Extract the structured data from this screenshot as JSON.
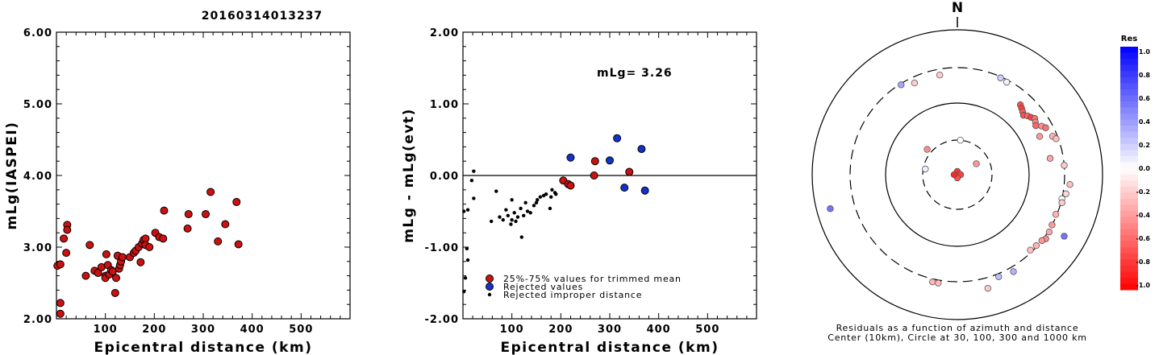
{
  "title": "20160314013237",
  "colors": {
    "red": "#cc1111",
    "blue": "#1133cc",
    "black": "#000000"
  },
  "chart_data": [
    {
      "type": "scatter",
      "ylabel": "mLg(IASPEI)",
      "xlabel": "Epicentral distance (km)",
      "xlim": [
        0,
        600
      ],
      "ylim": [
        2.0,
        6.0
      ],
      "xticks": [
        100,
        200,
        300,
        400,
        500
      ],
      "xtick_labels": [
        "100",
        "200",
        "300",
        "400",
        "500"
      ],
      "yticks": [
        2.0,
        3.0,
        4.0,
        5.0,
        6.0
      ],
      "ytick_labels": [
        "2.00",
        "3.00",
        "4.00",
        "5.00",
        "6.00"
      ],
      "points": [
        [
          2,
          2.74
        ],
        [
          8,
          2.76
        ],
        [
          8,
          2.22
        ],
        [
          8,
          2.07
        ],
        [
          15,
          3.12
        ],
        [
          20,
          2.92
        ],
        [
          22,
          3.31
        ],
        [
          22,
          3.24
        ],
        [
          60,
          2.6
        ],
        [
          68,
          3.03
        ],
        [
          78,
          2.67
        ],
        [
          85,
          2.64
        ],
        [
          92,
          2.72
        ],
        [
          100,
          2.6
        ],
        [
          100,
          2.57
        ],
        [
          102,
          2.9
        ],
        [
          105,
          2.75
        ],
        [
          108,
          2.62
        ],
        [
          112,
          2.68
        ],
        [
          115,
          2.66
        ],
        [
          120,
          2.36
        ],
        [
          122,
          2.57
        ],
        [
          125,
          2.88
        ],
        [
          128,
          2.7
        ],
        [
          130,
          2.75
        ],
        [
          132,
          2.8
        ],
        [
          135,
          2.86
        ],
        [
          150,
          2.86
        ],
        [
          158,
          2.92
        ],
        [
          162,
          2.95
        ],
        [
          168,
          3.0
        ],
        [
          172,
          2.79
        ],
        [
          175,
          3.05
        ],
        [
          178,
          3.1
        ],
        [
          182,
          3.12
        ],
        [
          182,
          3.03
        ],
        [
          190,
          3.0
        ],
        [
          202,
          3.2
        ],
        [
          210,
          3.14
        ],
        [
          218,
          3.12
        ],
        [
          220,
          3.51
        ],
        [
          268,
          3.26
        ],
        [
          270,
          3.46
        ],
        [
          305,
          3.46
        ],
        [
          315,
          3.77
        ],
        [
          330,
          3.08
        ],
        [
          345,
          3.32
        ],
        [
          368,
          3.63
        ],
        [
          372,
          3.04
        ]
      ]
    },
    {
      "type": "scatter",
      "ylabel": "mLg - mLg(evt)",
      "xlabel": "Epicentral distance (km)",
      "annotation": "mLg= 3.26",
      "reference_line": 0.0,
      "xlim": [
        0,
        600
      ],
      "ylim": [
        -2.0,
        2.0
      ],
      "xticks": [
        100,
        200,
        300,
        400,
        500
      ],
      "xtick_labels": [
        "100",
        "200",
        "300",
        "400",
        "500"
      ],
      "yticks": [
        -2.0,
        -1.0,
        0.0,
        1.0,
        2.0
      ],
      "ytick_labels": [
        "-2.00",
        "-1.00",
        "0.00",
        "1.00",
        "2.00"
      ],
      "legend": {
        "position": "bottom-left",
        "entries": [
          "25%-75% values for trimmed mean",
          "Rejected values",
          "Rejected improper distance"
        ]
      },
      "series": [
        {
          "name": "25%-75% values for trimmed mean",
          "marker": "red",
          "points": [
            [
              205,
              -0.07
            ],
            [
              215,
              -0.12
            ],
            [
              220,
              -0.14
            ],
            [
              268,
              0.0
            ],
            [
              270,
              0.2
            ],
            [
              340,
              0.05
            ]
          ]
        },
        {
          "name": "Rejected values",
          "marker": "blue",
          "points": [
            [
              220,
              0.25
            ],
            [
              300,
              0.21
            ],
            [
              315,
              0.52
            ],
            [
              330,
              -0.17
            ],
            [
              365,
              0.37
            ],
            [
              372,
              -0.21
            ]
          ]
        },
        {
          "name": "Rejected improper distance",
          "marker": "dot",
          "points": [
            [
              2,
              -0.5
            ],
            [
              2,
              -1.62
            ],
            [
              5,
              -1.43
            ],
            [
              8,
              -1.02
            ],
            [
              10,
              -1.18
            ],
            [
              10,
              -0.48
            ],
            [
              18,
              -0.07
            ],
            [
              22,
              0.06
            ],
            [
              22,
              -0.32
            ],
            [
              58,
              -0.64
            ],
            [
              68,
              -0.22
            ],
            [
              75,
              -0.58
            ],
            [
              82,
              -0.62
            ],
            [
              88,
              -0.48
            ],
            [
              92,
              -0.56
            ],
            [
              98,
              -0.68
            ],
            [
              100,
              -0.34
            ],
            [
              100,
              -0.62
            ],
            [
              105,
              -0.52
            ],
            [
              108,
              -0.64
            ],
            [
              112,
              -0.58
            ],
            [
              118,
              -0.46
            ],
            [
              120,
              -0.86
            ],
            [
              124,
              -0.56
            ],
            [
              128,
              -0.38
            ],
            [
              132,
              -0.5
            ],
            [
              138,
              -0.52
            ],
            [
              145,
              -0.42
            ],
            [
              150,
              -0.38
            ],
            [
              152,
              -0.34
            ],
            [
              158,
              -0.3
            ],
            [
              165,
              -0.28
            ],
            [
              170,
              -0.26
            ],
            [
              178,
              -0.46
            ],
            [
              180,
              -0.3
            ],
            [
              182,
              -0.2
            ],
            [
              188,
              -0.24
            ],
            [
              190,
              -0.26
            ]
          ]
        }
      ]
    }
  ],
  "azimuth_plot": {
    "north_label": "N",
    "caption_line1": "Residuals as a function of azimuth and distance",
    "caption_line2": "Center (10km), Circle at 30, 100, 300 and 1000 km",
    "colorbar_title": "Res",
    "colorbar_labels": [
      "1.0",
      "0.8",
      "0.6",
      "0.4",
      "0.2",
      "0.0",
      "-0.2",
      "-0.4",
      "-0.6",
      "-0.8",
      "-1.0"
    ],
    "points": [
      {
        "az": 0,
        "dist": 10,
        "res": -0.8
      },
      {
        "az": 90,
        "dist": 10,
        "res": -0.75
      },
      {
        "az": 180,
        "dist": 10,
        "res": -0.7
      },
      {
        "az": 270,
        "dist": 10,
        "res": -0.85
      },
      {
        "az": 60,
        "dist": 20,
        "res": -0.4
      },
      {
        "az": 5,
        "dist": 30,
        "res": 0.0
      },
      {
        "az": 280,
        "dist": 28,
        "res": 0.05
      },
      {
        "az": 310,
        "dist": 35,
        "res": -0.45
      },
      {
        "az": 350,
        "dist": 250,
        "res": -0.2
      },
      {
        "az": 328,
        "dist": 290,
        "res": 0.35
      },
      {
        "az": 24,
        "dist": 290,
        "res": 0.2
      },
      {
        "az": 28,
        "dist": 280,
        "res": 0.05
      },
      {
        "az": 42,
        "dist": 200,
        "res": -0.7
      },
      {
        "az": 44,
        "dist": 190,
        "res": -0.75
      },
      {
        "az": 46,
        "dist": 180,
        "res": -0.65
      },
      {
        "az": 48,
        "dist": 170,
        "res": -0.7
      },
      {
        "az": 50,
        "dist": 185,
        "res": -0.6
      },
      {
        "az": 52,
        "dist": 195,
        "res": -0.75
      },
      {
        "az": 54,
        "dist": 210,
        "res": -0.55
      },
      {
        "az": 56,
        "dist": 200,
        "res": -0.5
      },
      {
        "az": 58,
        "dist": 190,
        "res": -0.6
      },
      {
        "az": 60,
        "dist": 220,
        "res": -0.45
      },
      {
        "az": 62,
        "dist": 240,
        "res": -0.55
      },
      {
        "az": 65,
        "dist": 180,
        "res": -0.4
      },
      {
        "az": 68,
        "dist": 260,
        "res": -0.3
      },
      {
        "az": 70,
        "dist": 280,
        "res": -0.25
      },
      {
        "az": 80,
        "dist": 200,
        "res": -0.35
      },
      {
        "az": 85,
        "dist": 300,
        "res": -0.2
      },
      {
        "az": 95,
        "dist": 360,
        "res": -0.25
      },
      {
        "az": 100,
        "dist": 330,
        "res": -0.15
      },
      {
        "az": 103,
        "dist": 300,
        "res": 0.0
      },
      {
        "az": 105,
        "dist": 310,
        "res": -0.2
      },
      {
        "az": 112,
        "dist": 290,
        "res": -0.3
      },
      {
        "az": 118,
        "dist": 300,
        "res": -0.4
      },
      {
        "az": 122,
        "dist": 310,
        "res": -0.35
      },
      {
        "az": 126,
        "dist": 320,
        "res": -0.45
      },
      {
        "az": 128,
        "dist": 300,
        "res": -0.4
      },
      {
        "az": 132,
        "dist": 290,
        "res": -0.3
      },
      {
        "az": 136,
        "dist": 280,
        "res": -0.25
      },
      {
        "az": 120,
        "dist": 500,
        "res": 0.55
      },
      {
        "az": 150,
        "dist": 350,
        "res": 0.3
      },
      {
        "az": 165,
        "dist": 420,
        "res": -0.2
      },
      {
        "az": 190,
        "dist": 330,
        "res": -0.25
      },
      {
        "az": 193,
        "dist": 330,
        "res": -0.3
      },
      {
        "az": 255,
        "dist": 650,
        "res": 0.55
      },
      {
        "az": 158,
        "dist": 330,
        "res": 0.25
      },
      {
        "az": 335,
        "dist": 250,
        "res": -0.2
      }
    ]
  }
}
